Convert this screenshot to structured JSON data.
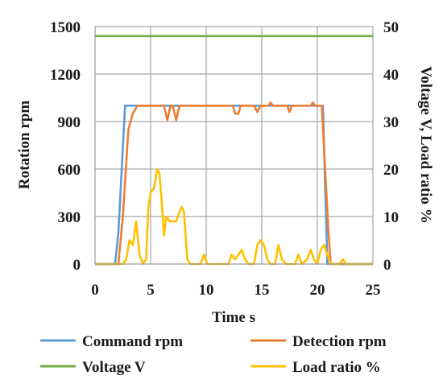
{
  "chart_data": {
    "type": "line",
    "xlabel": "Time s",
    "ylabel_left": "Rotation rpm",
    "ylabel_right": "Voltage V, Load ratio %",
    "xlim": [
      0,
      25
    ],
    "ylim_left": [
      0,
      1500
    ],
    "ylim_right": [
      0,
      50
    ],
    "x_ticks": [
      0,
      5,
      10,
      15,
      20,
      25
    ],
    "y_left_ticks": [
      0,
      300,
      600,
      900,
      1200,
      1500
    ],
    "y_right_ticks": [
      0,
      10,
      20,
      30,
      40,
      50
    ],
    "grid": true,
    "legend_position": "bottom",
    "series": [
      {
        "name": "Command rpm",
        "axis": "left",
        "color": "#5b9bd5",
        "points": [
          [
            0,
            0
          ],
          [
            1.8,
            0
          ],
          [
            2.1,
            200
          ],
          [
            2.7,
            1000
          ],
          [
            20.5,
            1000
          ],
          [
            20.9,
            0
          ],
          [
            25,
            0
          ]
        ]
      },
      {
        "name": "Detection rpm",
        "axis": "left",
        "color": "#ed7d31",
        "points": [
          [
            0,
            0
          ],
          [
            2.1,
            0
          ],
          [
            2.5,
            300
          ],
          [
            3.0,
            850
          ],
          [
            3.4,
            950
          ],
          [
            3.8,
            1000
          ],
          [
            6.2,
            1000
          ],
          [
            6.5,
            910
          ],
          [
            6.8,
            1000
          ],
          [
            7.0,
            1000
          ],
          [
            7.3,
            910
          ],
          [
            7.6,
            1000
          ],
          [
            12.4,
            1000
          ],
          [
            12.6,
            950
          ],
          [
            12.9,
            950
          ],
          [
            13.1,
            1000
          ],
          [
            14.3,
            1000
          ],
          [
            14.6,
            960
          ],
          [
            14.9,
            1000
          ],
          [
            15.6,
            1000
          ],
          [
            15.8,
            1020
          ],
          [
            16.0,
            1000
          ],
          [
            17.3,
            1000
          ],
          [
            17.5,
            960
          ],
          [
            17.7,
            1000
          ],
          [
            19.4,
            1000
          ],
          [
            19.6,
            1020
          ],
          [
            19.8,
            1000
          ],
          [
            20.4,
            1000
          ],
          [
            21.0,
            200
          ],
          [
            21.2,
            0
          ],
          [
            25,
            0
          ]
        ]
      },
      {
        "name": "Voltage V",
        "axis": "right",
        "color": "#70ad47",
        "points": [
          [
            0,
            48
          ],
          [
            25,
            48
          ]
        ]
      },
      {
        "name": "Load ratio %",
        "axis": "right",
        "color": "#ffc000",
        "points": [
          [
            0,
            0
          ],
          [
            2.5,
            0
          ],
          [
            2.8,
            1
          ],
          [
            3.1,
            5
          ],
          [
            3.4,
            4
          ],
          [
            3.7,
            9
          ],
          [
            4.0,
            2
          ],
          [
            4.3,
            0
          ],
          [
            4.6,
            1
          ],
          [
            4.8,
            12
          ],
          [
            5.0,
            15
          ],
          [
            5.3,
            16
          ],
          [
            5.6,
            20
          ],
          [
            5.8,
            19
          ],
          [
            6.0,
            13
          ],
          [
            6.2,
            6
          ],
          [
            6.4,
            10
          ],
          [
            6.7,
            9
          ],
          [
            7.0,
            9
          ],
          [
            7.3,
            9
          ],
          [
            7.6,
            11
          ],
          [
            7.8,
            12
          ],
          [
            8.0,
            11
          ],
          [
            8.3,
            1
          ],
          [
            8.6,
            0
          ],
          [
            9.0,
            0
          ],
          [
            9.5,
            0
          ],
          [
            9.8,
            2
          ],
          [
            10.1,
            0
          ],
          [
            12.0,
            0
          ],
          [
            12.3,
            2
          ],
          [
            12.6,
            1
          ],
          [
            12.9,
            2
          ],
          [
            13.2,
            3
          ],
          [
            13.5,
            1
          ],
          [
            13.8,
            0
          ],
          [
            14.3,
            0
          ],
          [
            14.6,
            4
          ],
          [
            14.9,
            5
          ],
          [
            15.2,
            4
          ],
          [
            15.5,
            1
          ],
          [
            15.8,
            0
          ],
          [
            16.2,
            0
          ],
          [
            16.5,
            4
          ],
          [
            16.8,
            1
          ],
          [
            17.2,
            0
          ],
          [
            18.0,
            0
          ],
          [
            18.3,
            2
          ],
          [
            18.6,
            0
          ],
          [
            19.1,
            1
          ],
          [
            19.4,
            3
          ],
          [
            19.7,
            1
          ],
          [
            20.0,
            0
          ],
          [
            20.3,
            3
          ],
          [
            20.6,
            4
          ],
          [
            20.9,
            2
          ],
          [
            21.2,
            0
          ],
          [
            22.0,
            0
          ],
          [
            22.3,
            1
          ],
          [
            22.6,
            0
          ],
          [
            25,
            0
          ]
        ]
      }
    ]
  }
}
